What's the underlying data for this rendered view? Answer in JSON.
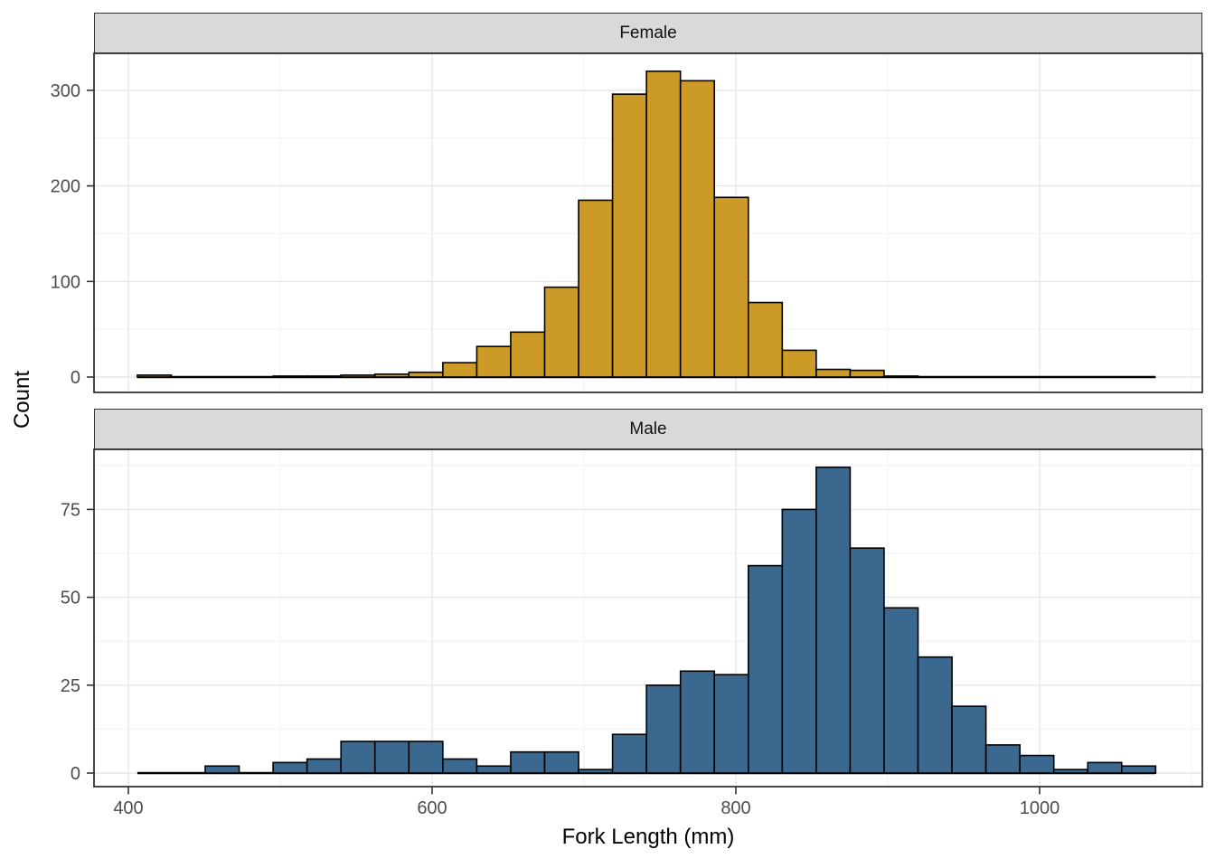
{
  "chart_data": {
    "type": "bar",
    "subtype": "faceted-histogram",
    "title": "",
    "xlabel": "Fork Length (mm)",
    "ylabel": "Count",
    "x_tick_labels": [
      "400",
      "600",
      "800",
      "1000"
    ],
    "x_tick_values": [
      400,
      600,
      800,
      1000
    ],
    "x_minor_values": [
      500,
      700,
      900,
      1100
    ],
    "x_axis_range_mm": [
      377,
      1107
    ],
    "bins": {
      "start_mm": 405.9,
      "binwidth_mm": 22.35,
      "n_bins": 30
    },
    "facets": [
      {
        "label": "Female",
        "fill": "#CC9A26",
        "y_ticks": [
          0,
          100,
          200,
          300
        ],
        "y_minor": [
          50,
          150,
          250
        ],
        "counts": [
          2,
          0,
          0,
          0,
          1,
          1,
          2,
          3,
          5,
          15,
          32,
          47,
          94,
          185,
          296,
          320,
          310,
          188,
          78,
          28,
          8,
          7,
          1,
          0,
          0,
          0,
          0,
          0,
          0,
          0
        ]
      },
      {
        "label": "Male",
        "fill": "#3A688F",
        "y_ticks": [
          0,
          25,
          50,
          75
        ],
        "y_minor": [
          12.5,
          37.5,
          62.5,
          87.5
        ],
        "counts": [
          0,
          0,
          2,
          0,
          3,
          4,
          9,
          9,
          9,
          4,
          2,
          6,
          6,
          1,
          11,
          25,
          29,
          28,
          59,
          75,
          87,
          64,
          47,
          33,
          19,
          8,
          5,
          1,
          3,
          2
        ]
      }
    ],
    "legend": "none",
    "grid": "on",
    "colors": {
      "bar_border": "#000000",
      "strip_fill": "#D9D9D9",
      "panel_border": "#333333",
      "grid_major": "#E7E7E7",
      "grid_minor": "#F2F2F2",
      "axis_text": "#4D4D4D",
      "tick_mark": "#333333",
      "title_text": "#000000"
    }
  }
}
